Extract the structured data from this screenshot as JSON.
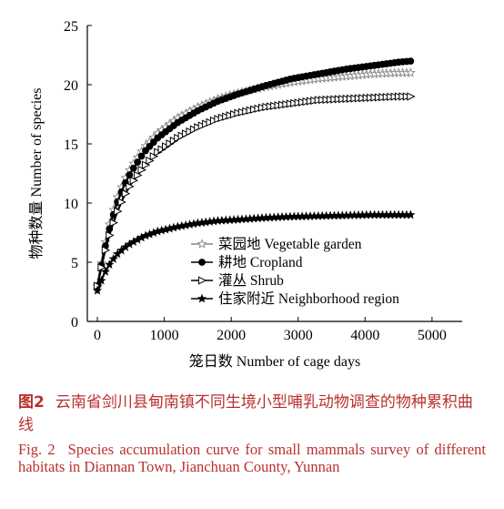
{
  "chart_data": {
    "type": "line",
    "title": "",
    "xlabel": "笼日数 Number of cage days",
    "ylabel": "物种数量 Number of species",
    "xlim": [
      -150,
      5450
    ],
    "ylim": [
      0,
      25
    ],
    "xticks": [
      0,
      1000,
      2000,
      3000,
      4000,
      5000
    ],
    "yticks": [
      0,
      5,
      10,
      15,
      20,
      25
    ],
    "grid": false,
    "legend_position": "bottom-right",
    "x": [
      0,
      100,
      200,
      300,
      400,
      500,
      700,
      900,
      1200,
      1500,
      1800,
      2100,
      2500,
      2900,
      3300,
      3700,
      4100,
      4500,
      4700
    ],
    "series": [
      {
        "name": "菜园地 Vegetable garden",
        "marker": "star-open",
        "color": "#888888",
        "values": [
          3.0,
          6.2,
          8.7,
          10.5,
          11.9,
          13.0,
          14.7,
          15.9,
          17.2,
          18.1,
          18.8,
          19.3,
          19.8,
          20.2,
          20.5,
          20.7,
          20.9,
          21.0,
          21.0
        ]
      },
      {
        "name": "耕地 Cropland",
        "marker": "circle-filled",
        "color": "#000000",
        "values": [
          3.0,
          5.9,
          8.3,
          10.1,
          11.5,
          12.6,
          14.3,
          15.5,
          16.8,
          17.8,
          18.6,
          19.2,
          19.9,
          20.5,
          20.9,
          21.3,
          21.6,
          21.9,
          22.0
        ]
      },
      {
        "name": "灌丛 Shrub",
        "marker": "triangle-right-open",
        "color": "#000000",
        "values": [
          3.0,
          5.6,
          7.7,
          9.3,
          10.6,
          11.6,
          13.1,
          14.3,
          15.5,
          16.4,
          17.1,
          17.6,
          18.1,
          18.4,
          18.7,
          18.8,
          18.9,
          19.0,
          19.0
        ]
      },
      {
        "name": "住家附近 Neighborhood region",
        "marker": "star-filled",
        "color": "#000000",
        "values": [
          2.6,
          4.0,
          5.0,
          5.7,
          6.2,
          6.6,
          7.2,
          7.6,
          8.0,
          8.3,
          8.5,
          8.6,
          8.75,
          8.85,
          8.9,
          8.95,
          9.0,
          9.0,
          9.0
        ]
      }
    ]
  },
  "caption_zh": {
    "label": "图2",
    "text": "云南省剑川县甸南镇不同生境小型哺乳动物调查的物种累积曲线"
  },
  "caption_en": {
    "label": "Fig. 2",
    "text": "Species accumulation curve for small mammals survey of different habitats in Diannan Town, Jianchuan County, Yunnan"
  },
  "colors": {
    "caption": "#b8312f",
    "axis": "#000000",
    "garden_line": "#888888"
  }
}
